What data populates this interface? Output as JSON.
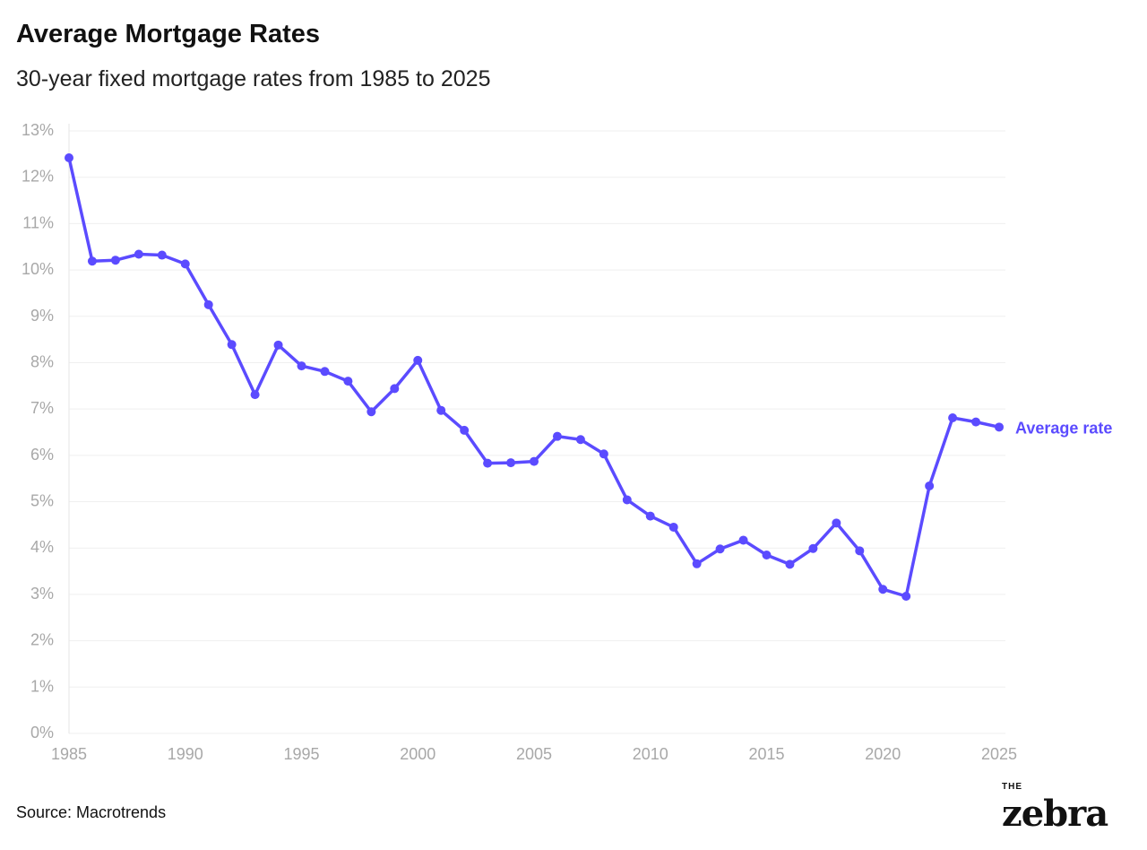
{
  "title": "Average Mortgage Rates",
  "subtitle": "30-year fixed mortgage rates from 1985 to 2025",
  "source": "Source: Macrotrends",
  "logo": "THE zebra",
  "chart_data": {
    "type": "line",
    "title": "Average Mortgage Rates",
    "subtitle": "30-year fixed mortgage rates from 1985 to 2025",
    "xlabel": "",
    "ylabel": "",
    "xlim": [
      1985,
      2025
    ],
    "ylim": [
      0,
      13
    ],
    "xticks": [
      1985,
      1990,
      1995,
      2000,
      2005,
      2010,
      2015,
      2020,
      2025
    ],
    "yticks": [
      "0%",
      "1%",
      "2%",
      "3%",
      "4%",
      "5%",
      "6%",
      "7%",
      "8%",
      "9%",
      "10%",
      "11%",
      "12%",
      "13%"
    ],
    "grid": true,
    "color": "#5b4bff",
    "series": [
      {
        "name": "Average rate",
        "x": [
          1985,
          1986,
          1987,
          1988,
          1989,
          1990,
          1991,
          1992,
          1993,
          1994,
          1995,
          1996,
          1997,
          1998,
          1999,
          2000,
          2001,
          2002,
          2003,
          2004,
          2005,
          2006,
          2007,
          2008,
          2009,
          2010,
          2011,
          2012,
          2013,
          2014,
          2015,
          2016,
          2017,
          2018,
          2019,
          2020,
          2021,
          2022,
          2023,
          2024,
          2025
        ],
        "values": [
          12.42,
          10.19,
          10.21,
          10.34,
          10.32,
          10.13,
          9.25,
          8.39,
          7.31,
          8.38,
          7.93,
          7.81,
          7.6,
          6.94,
          7.44,
          8.05,
          6.97,
          6.54,
          5.83,
          5.84,
          5.87,
          6.41,
          6.34,
          6.03,
          5.04,
          4.69,
          4.45,
          3.66,
          3.98,
          4.17,
          3.85,
          3.65,
          3.99,
          4.54,
          3.94,
          3.11,
          2.96,
          5.34,
          6.81,
          6.72,
          6.61
        ]
      }
    ]
  }
}
